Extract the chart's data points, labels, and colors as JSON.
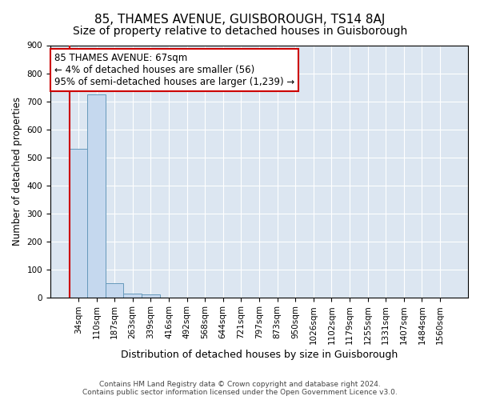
{
  "title": "85, THAMES AVENUE, GUISBOROUGH, TS14 8AJ",
  "subtitle": "Size of property relative to detached houses in Guisborough",
  "xlabel": "Distribution of detached houses by size in Guisborough",
  "ylabel": "Number of detached properties",
  "categories": [
    "34sqm",
    "110sqm",
    "187sqm",
    "263sqm",
    "339sqm",
    "416sqm",
    "492sqm",
    "568sqm",
    "644sqm",
    "721sqm",
    "797sqm",
    "873sqm",
    "950sqm",
    "1026sqm",
    "1102sqm",
    "1179sqm",
    "1255sqm",
    "1331sqm",
    "1407sqm",
    "1484sqm",
    "1560sqm"
  ],
  "values": [
    530,
    725,
    50,
    13,
    10,
    0,
    0,
    0,
    0,
    0,
    0,
    0,
    0,
    0,
    0,
    0,
    0,
    0,
    0,
    0,
    0
  ],
  "bar_color": "#c5d8ee",
  "bar_edge_color": "#6699bb",
  "vline_color": "#cc0000",
  "annotation_text": "85 THAMES AVENUE: 67sqm\n← 4% of detached houses are smaller (56)\n95% of semi-detached houses are larger (1,239) →",
  "annotation_box_color": "#ffffff",
  "annotation_box_edge": "#cc0000",
  "ylim": [
    0,
    900
  ],
  "yticks": [
    0,
    100,
    200,
    300,
    400,
    500,
    600,
    700,
    800,
    900
  ],
  "footer": "Contains HM Land Registry data © Crown copyright and database right 2024.\nContains public sector information licensed under the Open Government Licence v3.0.",
  "plot_bg_color": "#dce6f1",
  "title_fontsize": 11,
  "subtitle_fontsize": 10,
  "tick_fontsize": 7.5,
  "ylabel_fontsize": 8.5,
  "xlabel_fontsize": 9,
  "annotation_fontsize": 8.5
}
